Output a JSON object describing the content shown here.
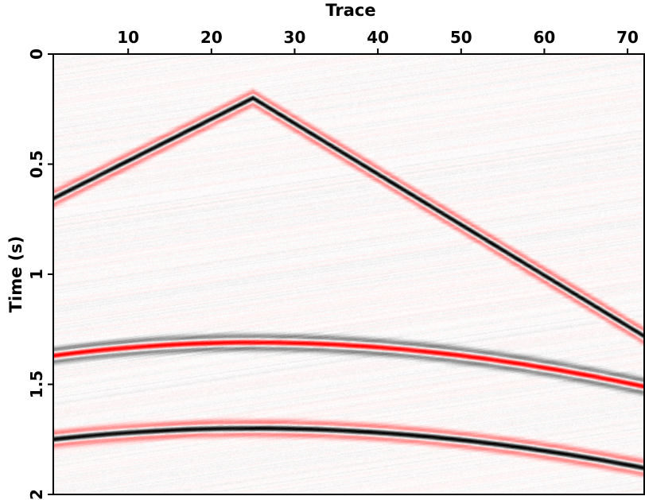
{
  "chart_data": {
    "type": "heatmap",
    "title": "",
    "xlabel": "Trace",
    "ylabel": "Time (s)",
    "xlim": [
      1,
      72
    ],
    "ylim": [
      0,
      2
    ],
    "y_inverted": true,
    "x_axis_position": "top",
    "x_ticks": [
      10,
      20,
      30,
      40,
      50,
      60,
      70
    ],
    "x_tick_labels": [
      "10",
      "20",
      "30",
      "40",
      "50",
      "60",
      "70"
    ],
    "y_ticks": [
      0,
      0.5,
      1,
      1.5,
      2
    ],
    "y_tick_labels": [
      "0",
      "0.5",
      "1",
      "1.5",
      "2"
    ],
    "colormap": {
      "positive": "#000000",
      "zero": "#ffffff",
      "negative": "#ff0000"
    },
    "grid": false,
    "legend": "none",
    "events": [
      {
        "name": "",
        "shape": "linear-v",
        "apex_trace": 25,
        "apex_time": 0.2,
        "slope_left_s_per_trace": 0.019,
        "slope_right_s_per_trace": 0.023,
        "polarity": "peak-black-side-lobes-red"
      },
      {
        "name": "",
        "shape": "hyperbola",
        "apex_trace": 25,
        "apex_time": 1.31,
        "time_at_trace_1": 1.37,
        "time_at_trace_72": 1.51,
        "polarity": "trough-red-side-lobes-black"
      },
      {
        "name": "",
        "shape": "hyperbola",
        "apex_trace": 25,
        "apex_time": 1.7,
        "time_at_trace_1": 1.75,
        "time_at_trace_72": 1.88,
        "polarity": "peak-black-side-lobes-red"
      }
    ],
    "background": "random noise"
  }
}
